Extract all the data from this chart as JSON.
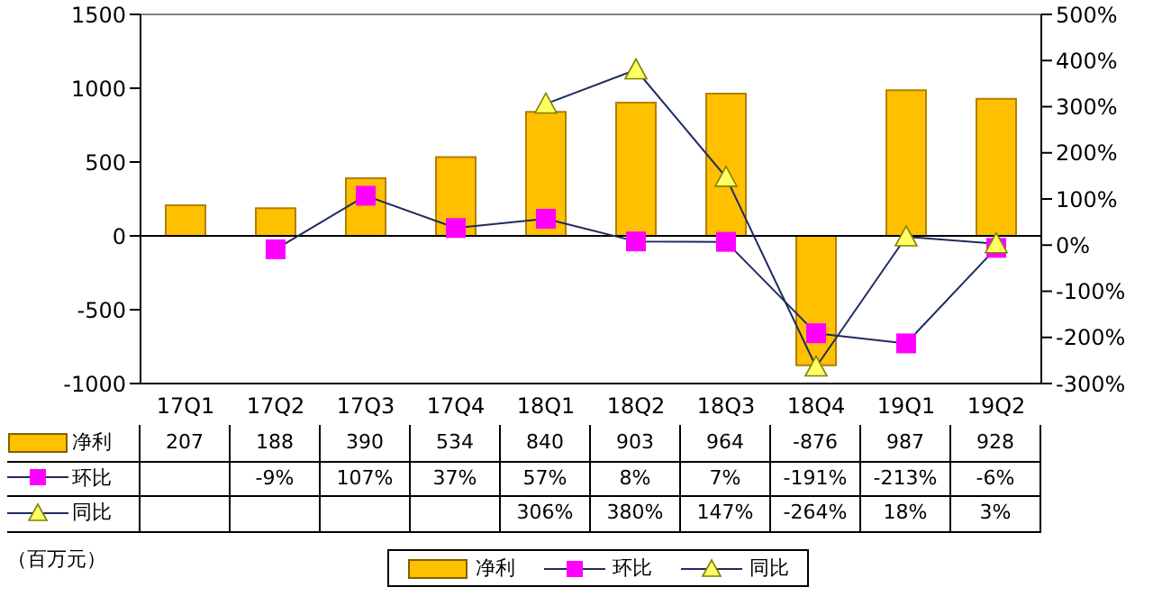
{
  "chart_data": {
    "type": "bar",
    "categories": [
      "17Q1",
      "17Q2",
      "17Q3",
      "17Q4",
      "18Q1",
      "18Q2",
      "18Q3",
      "18Q4",
      "19Q1",
      "19Q2"
    ],
    "series": [
      {
        "name": "净利",
        "color": "#ffc000",
        "values": [
          207,
          188,
          390,
          534,
          840,
          903,
          964,
          -876,
          987,
          928
        ],
        "value_labels": [
          "207",
          "188",
          "390",
          "534",
          "840",
          "903",
          "964",
          "-876",
          "987",
          "928"
        ]
      },
      {
        "name": "环比",
        "type": "line",
        "axis": "y2",
        "marker": "square",
        "color": "#ff00ff",
        "values": [
          null,
          -9,
          107,
          37,
          57,
          8,
          7,
          -191,
          -213,
          -6
        ],
        "value_labels": [
          null,
          "-9%",
          "107%",
          "37%",
          "57%",
          "8%",
          "7%",
          "-191%",
          "-213%",
          "-6%"
        ]
      },
      {
        "name": "同比",
        "type": "line",
        "axis": "y2",
        "marker": "triangle",
        "color": "#ffff66",
        "values": [
          null,
          null,
          null,
          null,
          306,
          380,
          147,
          -264,
          18,
          3
        ],
        "value_labels": [
          null,
          null,
          null,
          null,
          "306%",
          "380%",
          "147%",
          "-264%",
          "18%",
          "3%"
        ]
      }
    ],
    "ylim": [
      -1000,
      1500
    ],
    "yticks": [
      -1000,
      -500,
      0,
      500,
      1000,
      1500
    ],
    "y2lim": [
      -300,
      500
    ],
    "y2ticks": [
      {
        "value": -300,
        "label": "-300%"
      },
      {
        "value": -200,
        "label": "-200%"
      },
      {
        "value": -100,
        "label": "-100%"
      },
      {
        "value": 0,
        "label": "0%"
      },
      {
        "value": 100,
        "label": "100%"
      },
      {
        "value": 200,
        "label": "200%"
      },
      {
        "value": 300,
        "label": "300%"
      },
      {
        "value": 400,
        "label": "400%"
      },
      {
        "value": 500,
        "label": "500%"
      }
    ],
    "grid": "y",
    "legend": "bottom",
    "annotations": [
      "（百万元）"
    ]
  }
}
